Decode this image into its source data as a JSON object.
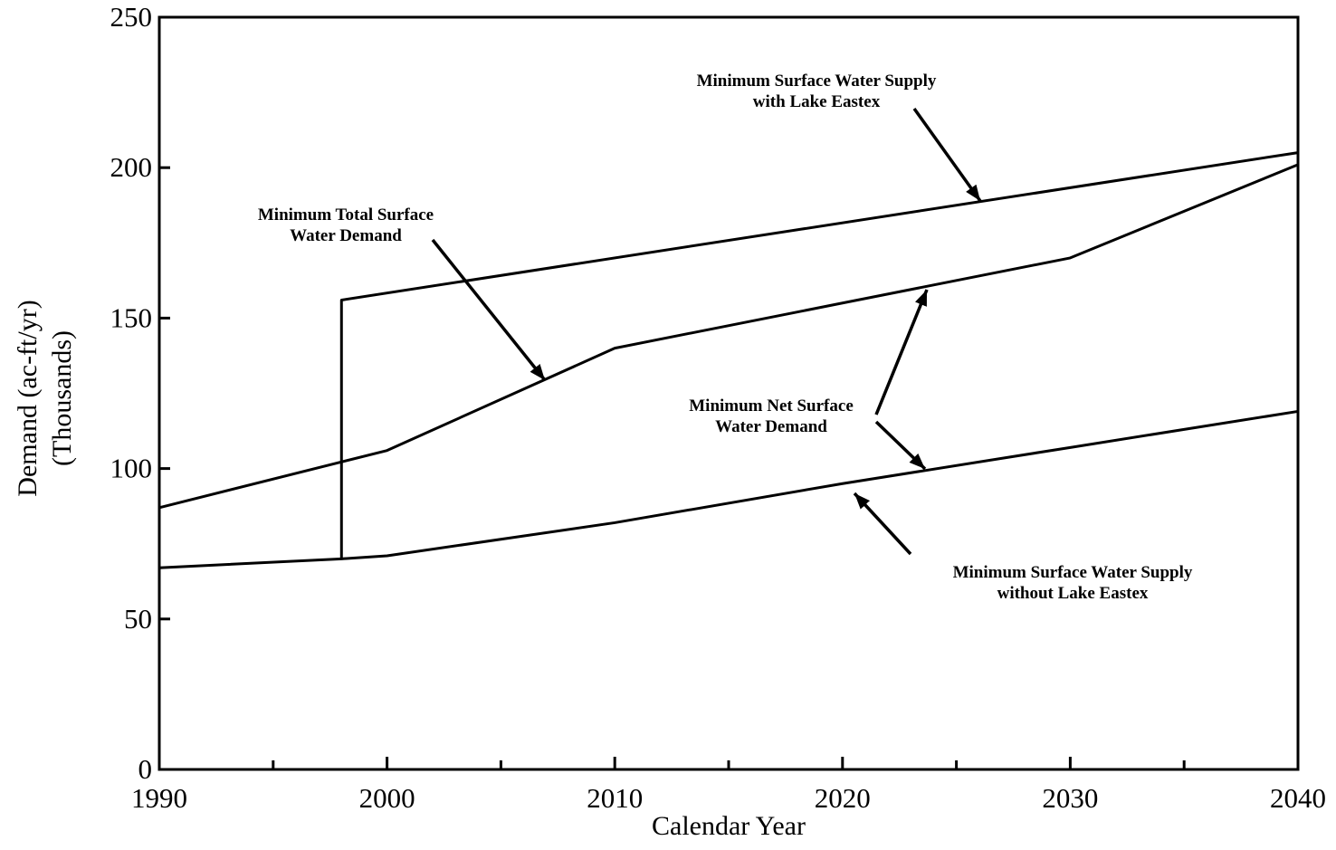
{
  "chart_data": {
    "type": "line",
    "x_label": "Calendar Year",
    "y_label": [
      "Demand (ac-ft/yr)",
      "(Thousands)"
    ],
    "xlim": [
      1990,
      2040
    ],
    "xticks": [
      1990,
      2000,
      2010,
      2020,
      2030,
      2040
    ],
    "xminor_ticks": [
      1995,
      2005,
      2015,
      2025,
      2035
    ],
    "ylim": [
      0,
      250
    ],
    "yticks": [
      0,
      50,
      100,
      150,
      200,
      250
    ],
    "color": "#000000",
    "series": [
      {
        "x": [
          1998,
          1998,
          2040
        ],
        "values": [
          70,
          156,
          205
        ]
      },
      {
        "x": [
          1990,
          2000,
          2010,
          2020,
          2030,
          2040
        ],
        "values": [
          87,
          106,
          140,
          155,
          170,
          201
        ]
      },
      {
        "x": [
          1990,
          1998,
          2000,
          2010,
          2020,
          2030,
          2040
        ],
        "values": [
          67,
          70,
          71,
          82,
          95,
          107,
          119
        ]
      }
    ],
    "annotations": [
      {
        "text": [
          "Minimum Surface Water Supply",
          "with Lake Eastex"
        ]
      },
      {
        "text": [
          "Minimum Total Surface",
          "Water Demand"
        ]
      },
      {
        "text": [
          "Minimum Net Surface",
          "Water Demand"
        ]
      },
      {
        "text": [
          "Minimum Surface Water Supply",
          "without Lake Eastex"
        ]
      }
    ]
  }
}
